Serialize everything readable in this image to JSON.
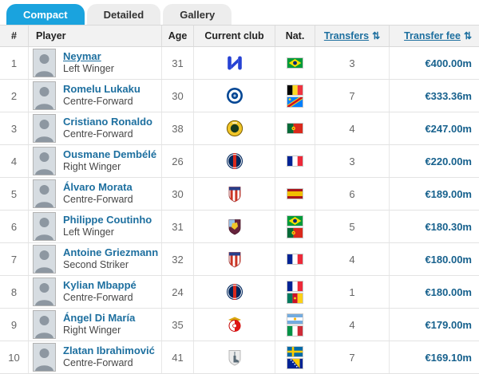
{
  "tabs": [
    {
      "label": "Compact",
      "active": true
    },
    {
      "label": "Detailed",
      "active": false
    },
    {
      "label": "Gallery",
      "active": false
    }
  ],
  "table": {
    "columns": {
      "rank": "#",
      "player": "Player",
      "age": "Age",
      "club": "Current club",
      "nat": "Nat.",
      "transfers": "Transfers",
      "fee": "Transfer fee"
    },
    "sort_icon": "⇅",
    "sortable_columns": [
      "Transfers",
      "Transfer fee"
    ]
  },
  "colors": {
    "active_tab_blue": "#1aa3de",
    "link_blue": "#1d6f9f",
    "fee_blue": "#17618d",
    "header_bg": "#f2f2f2"
  },
  "players": [
    {
      "rank": 1,
      "name": "Neymar",
      "underlined": true,
      "position": "Left Winger",
      "age": 31,
      "club": "Al-Hilal",
      "flags": [
        "Brazil"
      ],
      "transfers": 3,
      "fee": "€400.00m"
    },
    {
      "rank": 2,
      "name": "Romelu Lukaku",
      "underlined": false,
      "position": "Centre-Forward",
      "age": 30,
      "club": "Chelsea",
      "flags": [
        "Belgium",
        "DR Congo"
      ],
      "transfers": 7,
      "fee": "€333.36m"
    },
    {
      "rank": 3,
      "name": "Cristiano Ronaldo",
      "underlined": false,
      "position": "Centre-Forward",
      "age": 38,
      "club": "Al-Nassr",
      "flags": [
        "Portugal"
      ],
      "transfers": 4,
      "fee": "€247.00m"
    },
    {
      "rank": 4,
      "name": "Ousmane Dembélé",
      "underlined": false,
      "position": "Right Winger",
      "age": 26,
      "club": "Paris Saint-Germain",
      "flags": [
        "France"
      ],
      "transfers": 3,
      "fee": "€220.00m"
    },
    {
      "rank": 5,
      "name": "Álvaro Morata",
      "underlined": false,
      "position": "Centre-Forward",
      "age": 30,
      "club": "Atlético Madrid",
      "flags": [
        "Spain"
      ],
      "transfers": 6,
      "fee": "€189.00m"
    },
    {
      "rank": 6,
      "name": "Philippe Coutinho",
      "underlined": false,
      "position": "Left Winger",
      "age": 31,
      "club": "Aston Villa",
      "flags": [
        "Brazil",
        "Portugal"
      ],
      "transfers": 5,
      "fee": "€180.30m"
    },
    {
      "rank": 7,
      "name": "Antoine Griezmann",
      "underlined": false,
      "position": "Second Striker",
      "age": 32,
      "club": "Atlético Madrid",
      "flags": [
        "France"
      ],
      "transfers": 4,
      "fee": "€180.00m"
    },
    {
      "rank": 8,
      "name": "Kylian Mbappé",
      "underlined": false,
      "position": "Centre-Forward",
      "age": 24,
      "club": "Paris Saint-Germain",
      "flags": [
        "France",
        "Cameroon"
      ],
      "transfers": 1,
      "fee": "€180.00m"
    },
    {
      "rank": 9,
      "name": "Ángel Di María",
      "underlined": false,
      "position": "Right Winger",
      "age": 35,
      "club": "Benfica",
      "flags": [
        "Argentina",
        "Italy"
      ],
      "transfers": 4,
      "fee": "€179.00m"
    },
    {
      "rank": 10,
      "name": "Zlatan Ibrahimović",
      "underlined": false,
      "position": "Centre-Forward",
      "age": 41,
      "club": "Retired",
      "flags": [
        "Sweden",
        "Bosnia-Herzegovina"
      ],
      "transfers": 7,
      "fee": "€169.10m"
    }
  ]
}
